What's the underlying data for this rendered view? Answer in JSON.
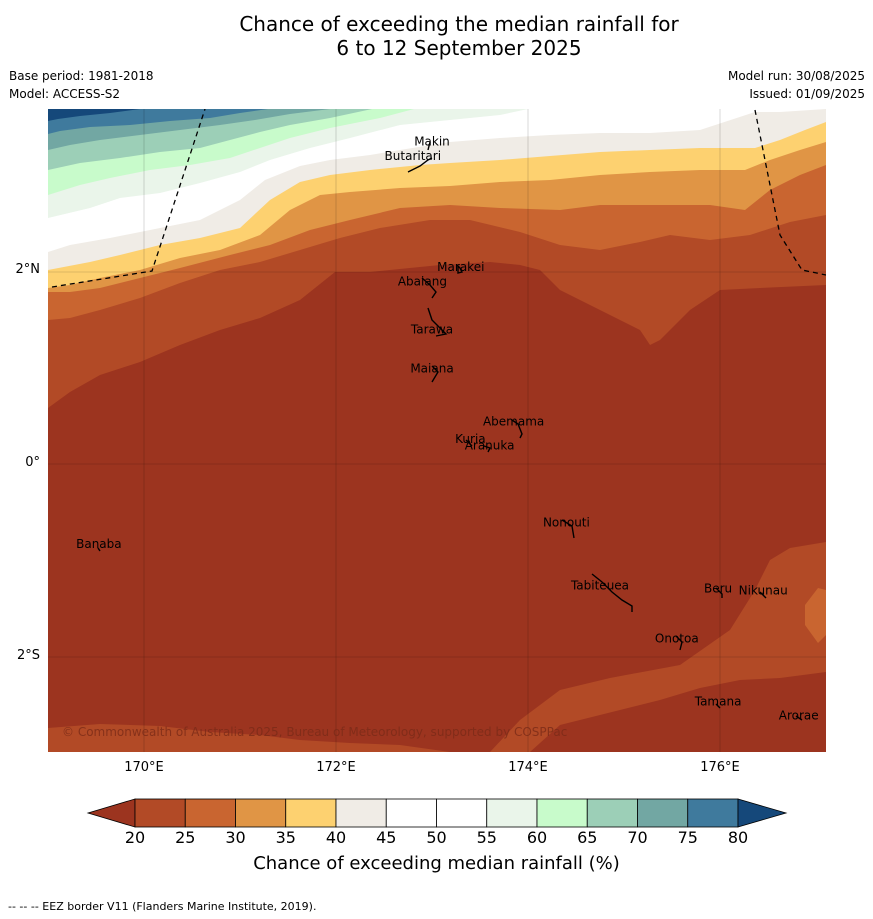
{
  "title_line1": "Chance of exceeding the median rainfall for",
  "title_line2": "6 to 12 September 2025",
  "base_period": "Base period: 1981-2018",
  "model": "Model: ACCESS-S2",
  "model_run": "Model run: 30/08/2025",
  "issued": "Issued: 01/09/2025",
  "copyright": "© Commonwealth of Australia 2025, Bureau of Meteorology, supported by COSPPac",
  "footnote": "--  --  -- EEZ border V11 (Flanders Marine Institute, 2019).",
  "colorbar_label": "Chance of exceeding median rainfall (%)",
  "colorbar_ticks": [
    "20",
    "25",
    "30",
    "35",
    "40",
    "45",
    "50",
    "55",
    "60",
    "65",
    "70",
    "75",
    "80"
  ],
  "colorbar_colors": [
    "#9c341f",
    "#b24a26",
    "#c96530",
    "#e09545",
    "#fdd170",
    "#f0ece6",
    "#ffffff",
    "#ffffff",
    "#eaf5ea",
    "#c8fbcb",
    "#9ccfb7",
    "#72a7a3",
    "#3f7a9d",
    "#15487a"
  ],
  "lon_labels": [
    "170°E",
    "172°E",
    "174°E",
    "176°E"
  ],
  "lat_labels": [
    "2°N",
    "0°",
    "2°S"
  ],
  "places": [
    {
      "name": "Makin",
      "lon": 173.0,
      "lat": 3.3
    },
    {
      "name": "Butaritari",
      "lon": 172.8,
      "lat": 3.15
    },
    {
      "name": "Marakei",
      "lon": 173.3,
      "lat": 2.0
    },
    {
      "name": "Abaiang",
      "lon": 172.9,
      "lat": 1.85
    },
    {
      "name": "Tarawa",
      "lon": 173.0,
      "lat": 1.35
    },
    {
      "name": "Maiana",
      "lon": 173.0,
      "lat": 0.95
    },
    {
      "name": "Abemama",
      "lon": 173.85,
      "lat": 0.4
    },
    {
      "name": "Kuria",
      "lon": 173.4,
      "lat": 0.22
    },
    {
      "name": "Aranuka",
      "lon": 173.6,
      "lat": 0.15
    },
    {
      "name": "Nonouti",
      "lon": 174.4,
      "lat": -0.65
    },
    {
      "name": "Banaba",
      "lon": 169.53,
      "lat": -0.87
    },
    {
      "name": "Beru",
      "lon": 175.98,
      "lat": -1.33
    },
    {
      "name": "Nikunau",
      "lon": 176.45,
      "lat": -1.35
    },
    {
      "name": "Tabiteuea",
      "lon": 174.75,
      "lat": -1.3
    },
    {
      "name": "Onotoa",
      "lon": 175.55,
      "lat": -1.85
    },
    {
      "name": "Tamana",
      "lon": 175.98,
      "lat": -2.5
    },
    {
      "name": "Arorae",
      "lon": 176.82,
      "lat": -2.65
    }
  ]
}
